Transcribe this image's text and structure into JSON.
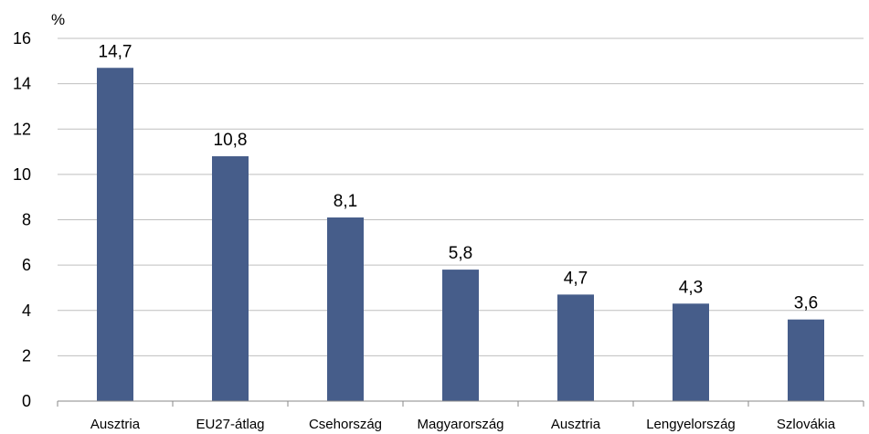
{
  "chart_data": {
    "type": "bar",
    "ylabel": "%",
    "ylim": [
      0,
      16
    ],
    "yticks": [
      0,
      2,
      4,
      6,
      8,
      10,
      12,
      14,
      16
    ],
    "grid": true,
    "categories": [
      "Ausztria",
      "EU27-átlag",
      "Csehország",
      "Magyarország",
      "Ausztria",
      "Lengyelország",
      "Szlovákia"
    ],
    "values": [
      14.7,
      10.8,
      8.1,
      5.8,
      4.7,
      4.3,
      3.6
    ],
    "data_labels": [
      "14,7",
      "10,8",
      "8,1",
      "5,8",
      "4,7",
      "4,3",
      "3,6"
    ],
    "colors": {
      "bar": "#465D8A",
      "grid": "#BFBFBF",
      "axis": "#898989"
    }
  }
}
